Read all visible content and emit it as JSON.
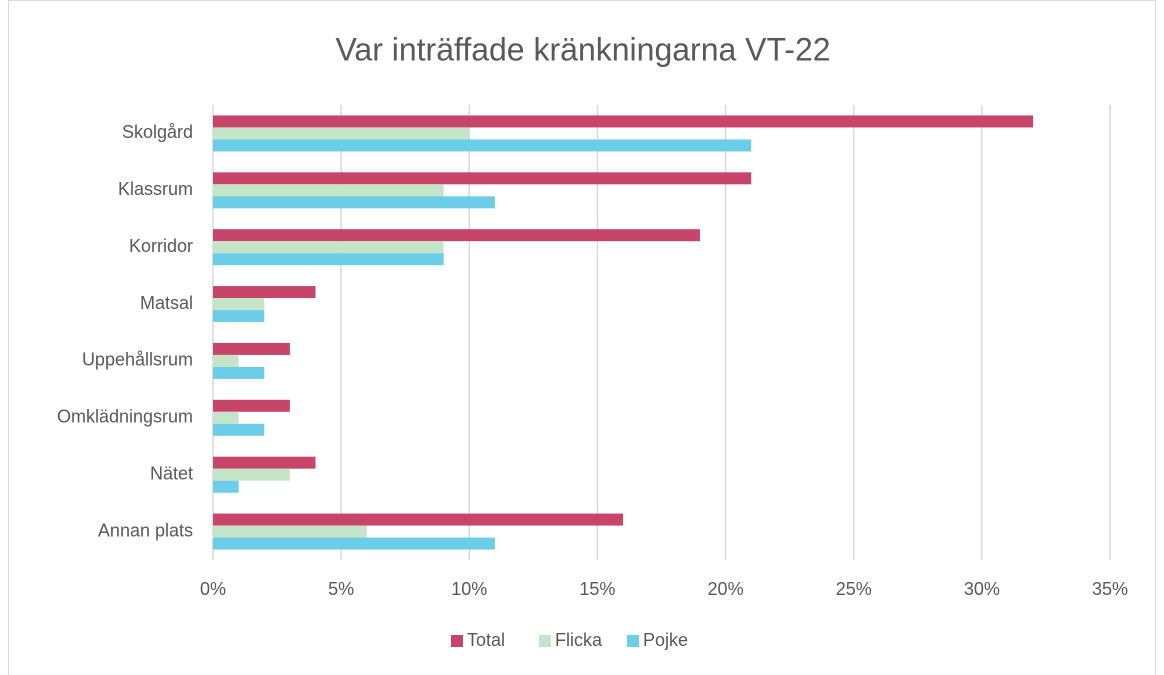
{
  "chart_data": {
    "type": "barh",
    "title": "Var inträffade kränkningarna VT-22",
    "categories": [
      "Skolgård",
      "Klassrum",
      "Korridor",
      "Matsal",
      "Uppehållsrum",
      "Omklädningsrum",
      "Nätet",
      "Annan plats"
    ],
    "series": [
      {
        "name": "Total",
        "color": "#c8456a",
        "values": [
          32,
          21,
          19,
          4,
          3,
          3,
          4,
          16
        ]
      },
      {
        "name": "Flicka",
        "color": "#c5e5c8",
        "values": [
          10,
          9,
          9,
          2,
          1,
          1,
          3,
          6
        ]
      },
      {
        "name": "Pojke",
        "color": "#6ccde8",
        "values": [
          21,
          11,
          9,
          2,
          2,
          2,
          1,
          11
        ]
      }
    ],
    "xlim": [
      0,
      35
    ],
    "xticks": [
      {
        "value": 0,
        "label": "0%"
      },
      {
        "value": 5,
        "label": "5%"
      },
      {
        "value": 10,
        "label": "10%"
      },
      {
        "value": 15,
        "label": "15%"
      },
      {
        "value": 20,
        "label": "20%"
      },
      {
        "value": 25,
        "label": "25%"
      },
      {
        "value": 30,
        "label": "30%"
      },
      {
        "value": 35,
        "label": "35%"
      }
    ],
    "grid": true,
    "legend": "bottom"
  }
}
